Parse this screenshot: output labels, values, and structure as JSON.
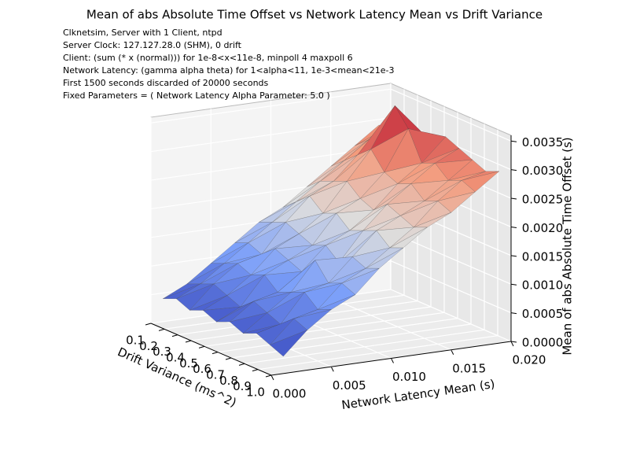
{
  "chart_data": {
    "type": "surface3d",
    "title": "Mean of abs Absolute Time Offset vs Network Latency Mean vs Drift Variance",
    "subtitle": [
      "Clknetsim, Server with 1 Client, ntpd",
      "Server Clock: 127.127.28.0 (SHM), 0 drift",
      "Client: (sum (* x (normal))) for 1e-8<x<11e-8, minpoll 4 maxpoll 6",
      "Network Latency: (gamma alpha theta) for 1<alpha<11, 1e-3<mean<21e-3",
      "First 1500 seconds discarded of 20000 seconds",
      "Fixed Parameters = ( Network Latency Alpha Parameter: 5.0 )"
    ],
    "x_label": "Network Latency Mean (s)",
    "y_label": "Drift Variance (ms^2)",
    "z_label": "Mean of abs Absolute Time Offset (s)",
    "x": [
      0.001,
      0.003,
      0.005,
      0.007,
      0.009,
      0.011,
      0.013,
      0.015,
      0.017,
      0.019
    ],
    "y": [
      0.1,
      0.2,
      0.3,
      0.4,
      0.5,
      0.6,
      0.7,
      0.8,
      0.9,
      1.0
    ],
    "z": [
      [
        0.0004,
        0.0006,
        0.0009,
        0.0012,
        0.0015,
        0.0017,
        0.002,
        0.0023,
        0.0026,
        0.0029
      ],
      [
        0.0005,
        0.0007,
        0.001,
        0.0013,
        0.0016,
        0.0019,
        0.0022,
        0.0025,
        0.0028,
        0.003
      ],
      [
        0.0004,
        0.0008,
        0.0011,
        0.0012,
        0.0017,
        0.0021,
        0.0023,
        0.0027,
        0.0031,
        0.0029
      ],
      [
        0.0005,
        0.0007,
        0.001,
        0.0014,
        0.0016,
        0.0019,
        0.0024,
        0.0029,
        0.0036,
        0.0031
      ],
      [
        0.0004,
        0.0006,
        0.0011,
        0.0013,
        0.0015,
        0.002,
        0.0022,
        0.0026,
        0.0033,
        0.003
      ],
      [
        0.0005,
        0.0008,
        0.0009,
        0.0012,
        0.0016,
        0.0018,
        0.0021,
        0.0025,
        0.0028,
        0.0032
      ],
      [
        0.0004,
        0.0007,
        0.001,
        0.0015,
        0.0014,
        0.0019,
        0.0023,
        0.0026,
        0.0029,
        0.0031
      ],
      [
        0.0005,
        0.0006,
        0.0011,
        0.0012,
        0.0016,
        0.002,
        0.0022,
        0.0024,
        0.0027,
        0.003
      ],
      [
        0.0004,
        0.0008,
        0.0009,
        0.0013,
        0.0015,
        0.0018,
        0.0021,
        0.0025,
        0.0028,
        0.0029
      ],
      [
        0.0003,
        0.0007,
        0.001,
        0.0012,
        0.0016,
        0.0019,
        0.0022,
        0.0024,
        0.0027,
        0.003
      ]
    ],
    "colormap": [
      "#3b4cc0",
      "#7b9ff9",
      "#dddddd",
      "#f49a7b",
      "#b40426"
    ],
    "xlim": [
      0,
      0.02
    ],
    "ylim": [
      0.1,
      1.0
    ],
    "zlim": [
      0,
      0.0036
    ],
    "xticks": [
      {
        "value": 0,
        "label": "0.000"
      },
      {
        "value": 0.005,
        "label": "0.005"
      },
      {
        "value": 0.01,
        "label": "0.010"
      },
      {
        "value": 0.015,
        "label": "0.015"
      },
      {
        "value": 0.02,
        "label": "0.020"
      }
    ],
    "yticks": [
      0.1,
      0.2,
      0.3,
      0.4,
      0.5,
      0.6,
      0.7,
      0.8,
      0.9,
      {
        "value": 1.0,
        "label": "1.0"
      }
    ],
    "zticks": [
      {
        "value": 0,
        "label": "0.0000"
      },
      {
        "value": 0.0005,
        "label": "0.0005"
      },
      {
        "value": 0.001,
        "label": "0.0010"
      },
      {
        "value": 0.0015,
        "label": "0.0015"
      },
      {
        "value": 0.002,
        "label": "0.0020"
      },
      {
        "value": 0.0025,
        "label": "0.0025"
      },
      {
        "value": 0.003,
        "label": "0.0030"
      },
      {
        "value": 0.0035,
        "label": "0.0035"
      }
    ],
    "grid": true
  }
}
